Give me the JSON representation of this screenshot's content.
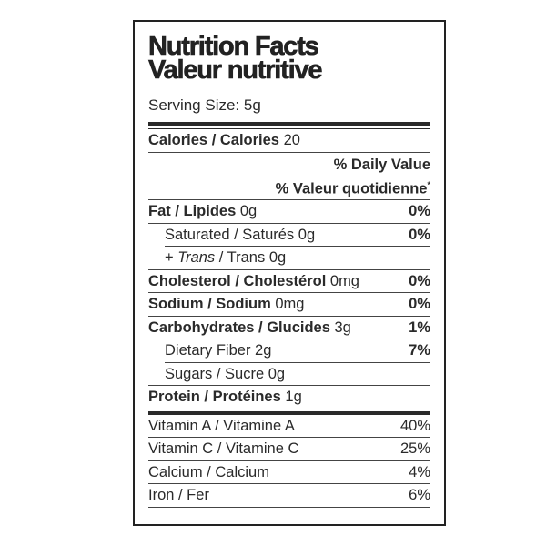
{
  "title": {
    "en": "Nutrition Facts",
    "fr": "Valeur nutritive"
  },
  "serving_size": "Serving Size: 5g",
  "calories": {
    "label": "Calories / Calories",
    "value": "20"
  },
  "daily_value": {
    "en": "% Daily Value",
    "fr": "% Valeur quotidienne",
    "mark": "*"
  },
  "nutrients": [
    {
      "label": "Fat / Lipides",
      "amount": "0g",
      "pct": "0%"
    },
    {
      "label": "Saturated / Saturés",
      "amount": "0g",
      "pct": "0%"
    },
    {
      "prefix": "+ ",
      "trans_it": "Trans",
      "label": " / Trans",
      "amount": "0g",
      "pct": ""
    },
    {
      "label": "Cholesterol / Cholestérol",
      "amount": "0mg",
      "pct": "0%"
    },
    {
      "label": "Sodium / Sodium",
      "amount": "0mg",
      "pct": "0%"
    },
    {
      "label": "Carbohydrates / Glucides",
      "amount": "3g",
      "pct": "1%"
    },
    {
      "label": "Dietary Fiber",
      "amount": "2g",
      "pct": "7%"
    },
    {
      "label": "Sugars / Sucre",
      "amount": "0g",
      "pct": ""
    },
    {
      "label": "Protein / Protéines",
      "amount": "1g",
      "pct": ""
    }
  ],
  "vitamins": [
    {
      "label": "Vitamin A / Vitamine A",
      "pct": "40%"
    },
    {
      "label": "Vitamin C / Vitamine C",
      "pct": "25%"
    },
    {
      "label": "Calcium / Calcium",
      "pct": "4%"
    },
    {
      "label": "Iron / Fer",
      "pct": "6%"
    }
  ]
}
